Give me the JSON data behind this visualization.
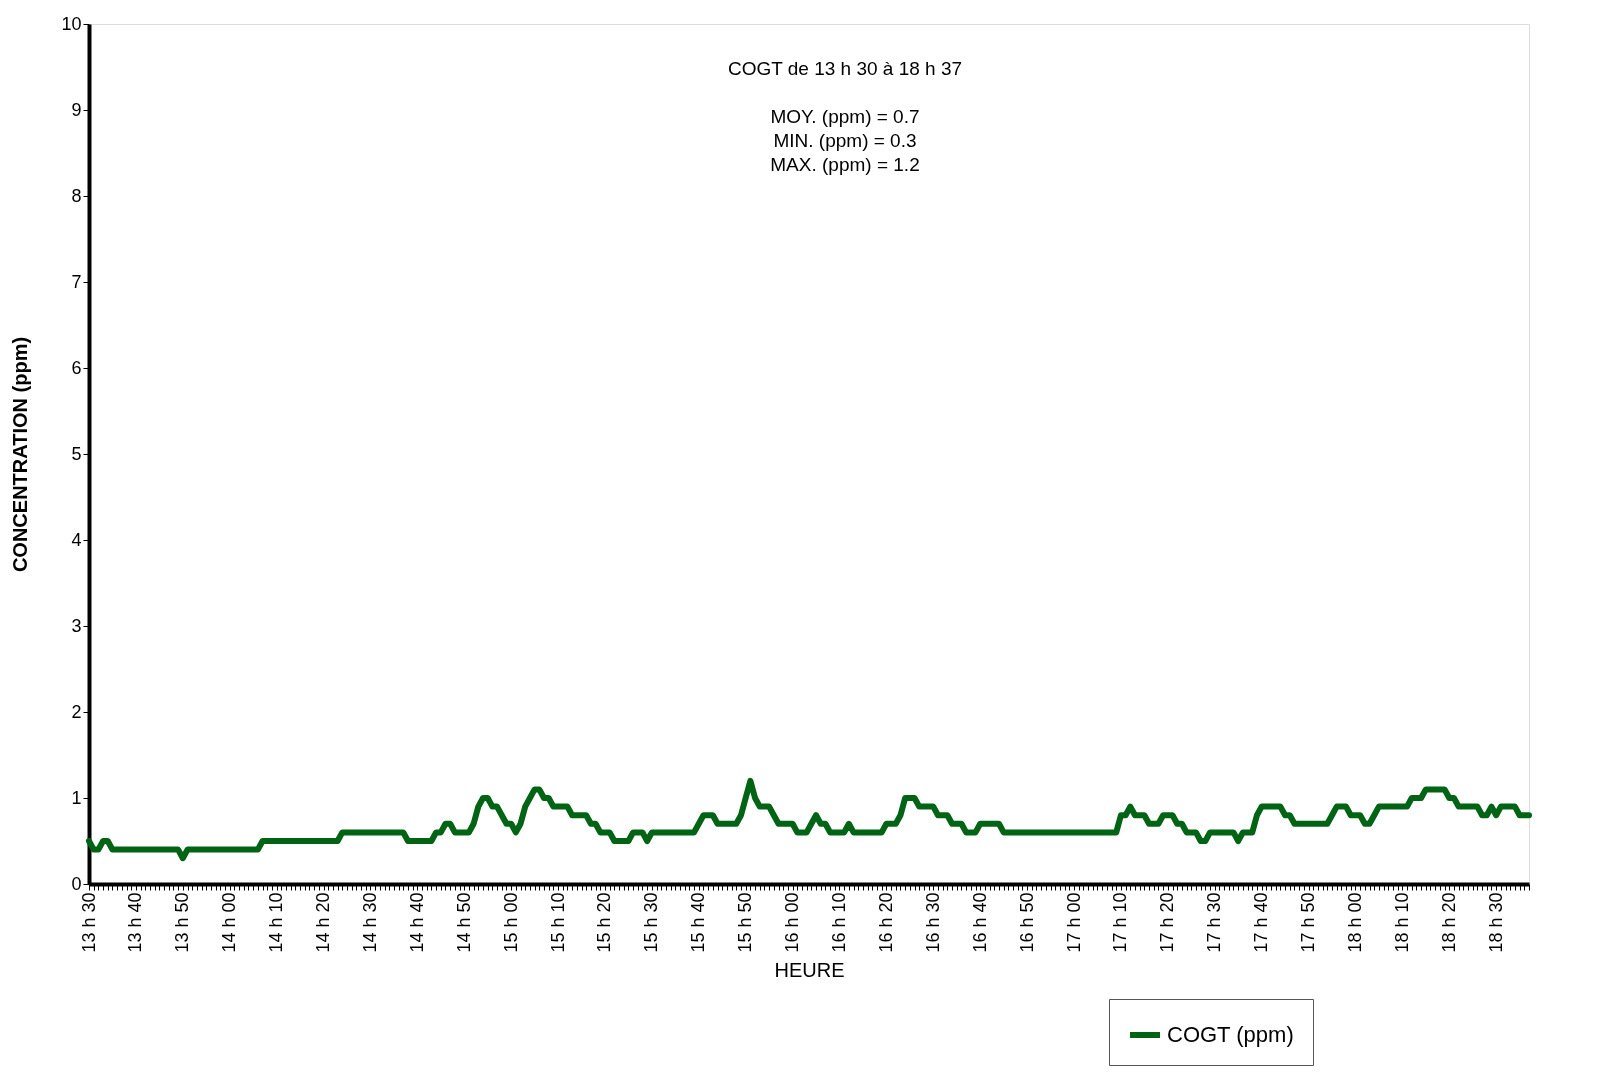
{
  "chart_data": {
    "type": "line",
    "xlabel": "HEURE",
    "ylabel": "CONCENTRATION (ppm)",
    "annotations": [
      "COGT de 13 h 30 à 18 h 37",
      "MOY. (ppm) = 0.7",
      "MIN. (ppm) = 0.3",
      "MAX. (ppm) = 1.2"
    ],
    "categories": [
      "13 h 30",
      null,
      null,
      null,
      null,
      null,
      null,
      null,
      null,
      null,
      "13 h 40",
      null,
      null,
      null,
      null,
      null,
      null,
      null,
      null,
      null,
      "13 h 50",
      null,
      null,
      null,
      null,
      null,
      null,
      null,
      null,
      null,
      "14 h 00",
      null,
      null,
      null,
      null,
      null,
      null,
      null,
      null,
      null,
      "14 h 10",
      null,
      null,
      null,
      null,
      null,
      null,
      null,
      null,
      null,
      "14 h 20",
      null,
      null,
      null,
      null,
      null,
      null,
      null,
      null,
      null,
      "14 h 30",
      null,
      null,
      null,
      null,
      null,
      null,
      null,
      null,
      null,
      "14 h 40",
      null,
      null,
      null,
      null,
      null,
      null,
      null,
      null,
      null,
      "14 h 50",
      null,
      null,
      null,
      null,
      null,
      null,
      null,
      null,
      null,
      "15 h 00",
      null,
      null,
      null,
      null,
      null,
      null,
      null,
      null,
      null,
      "15 h 10",
      null,
      null,
      null,
      null,
      null,
      null,
      null,
      null,
      null,
      "15 h 20",
      null,
      null,
      null,
      null,
      null,
      null,
      null,
      null,
      null,
      "15 h 30",
      null,
      null,
      null,
      null,
      null,
      null,
      null,
      null,
      null,
      "15 h 40",
      null,
      null,
      null,
      null,
      null,
      null,
      null,
      null,
      null,
      "15 h 50",
      null,
      null,
      null,
      null,
      null,
      null,
      null,
      null,
      null,
      "16 h 00",
      null,
      null,
      null,
      null,
      null,
      null,
      null,
      null,
      null,
      "16 h 10",
      null,
      null,
      null,
      null,
      null,
      null,
      null,
      null,
      null,
      "16 h 20",
      null,
      null,
      null,
      null,
      null,
      null,
      null,
      null,
      null,
      "16 h 30",
      null,
      null,
      null,
      null,
      null,
      null,
      null,
      null,
      null,
      "16 h 40",
      null,
      null,
      null,
      null,
      null,
      null,
      null,
      null,
      null,
      "16 h 50",
      null,
      null,
      null,
      null,
      null,
      null,
      null,
      null,
      null,
      "17 h 00",
      null,
      null,
      null,
      null,
      null,
      null,
      null,
      null,
      null,
      "17 h 10",
      null,
      null,
      null,
      null,
      null,
      null,
      null,
      null,
      null,
      "17 h 20",
      null,
      null,
      null,
      null,
      null,
      null,
      null,
      null,
      null,
      "17 h 30",
      null,
      null,
      null,
      null,
      null,
      null,
      null,
      null,
      null,
      "17 h 40",
      null,
      null,
      null,
      null,
      null,
      null,
      null,
      null,
      null,
      "17 h 50",
      null,
      null,
      null,
      null,
      null,
      null,
      null,
      null,
      null,
      "18 h 00",
      null,
      null,
      null,
      null,
      null,
      null,
      null,
      null,
      null,
      "18 h 10",
      null,
      null,
      null,
      null,
      null,
      null,
      null,
      null,
      null,
      "18 h 20",
      null,
      null,
      null,
      null,
      null,
      null,
      null,
      null,
      null,
      "18 h 30",
      null,
      null,
      null,
      null,
      null,
      null,
      null
    ],
    "series": [
      {
        "name": "COGT (ppm)",
        "color": "#006414",
        "values": [
          0.5,
          0.4,
          0.4,
          0.5,
          0.5,
          0.4,
          0.4,
          0.4,
          0.4,
          0.4,
          0.4,
          0.4,
          0.4,
          0.4,
          0.4,
          0.4,
          0.4,
          0.4,
          0.4,
          0.4,
          0.3,
          0.4,
          0.4,
          0.4,
          0.4,
          0.4,
          0.4,
          0.4,
          0.4,
          0.4,
          0.4,
          0.4,
          0.4,
          0.4,
          0.4,
          0.4,
          0.4,
          0.5,
          0.5,
          0.5,
          0.5,
          0.5,
          0.5,
          0.5,
          0.5,
          0.5,
          0.5,
          0.5,
          0.5,
          0.5,
          0.5,
          0.5,
          0.5,
          0.5,
          0.6,
          0.6,
          0.6,
          0.6,
          0.6,
          0.6,
          0.6,
          0.6,
          0.6,
          0.6,
          0.6,
          0.6,
          0.6,
          0.6,
          0.5,
          0.5,
          0.5,
          0.5,
          0.5,
          0.5,
          0.6,
          0.6,
          0.7,
          0.7,
          0.6,
          0.6,
          0.6,
          0.6,
          0.7,
          0.9,
          1.0,
          1.0,
          0.9,
          0.9,
          0.8,
          0.7,
          0.7,
          0.6,
          0.7,
          0.9,
          1.0,
          1.1,
          1.1,
          1.0,
          1.0,
          0.9,
          0.9,
          0.9,
          0.9,
          0.8,
          0.8,
          0.8,
          0.8,
          0.7,
          0.7,
          0.6,
          0.6,
          0.6,
          0.5,
          0.5,
          0.5,
          0.5,
          0.6,
          0.6,
          0.6,
          0.5,
          0.6,
          0.6,
          0.6,
          0.6,
          0.6,
          0.6,
          0.6,
          0.6,
          0.6,
          0.6,
          0.7,
          0.8,
          0.8,
          0.8,
          0.7,
          0.7,
          0.7,
          0.7,
          0.7,
          0.8,
          1.0,
          1.2,
          1.0,
          0.9,
          0.9,
          0.9,
          0.8,
          0.7,
          0.7,
          0.7,
          0.7,
          0.6,
          0.6,
          0.6,
          0.7,
          0.8,
          0.7,
          0.7,
          0.6,
          0.6,
          0.6,
          0.6,
          0.7,
          0.6,
          0.6,
          0.6,
          0.6,
          0.6,
          0.6,
          0.6,
          0.7,
          0.7,
          0.7,
          0.8,
          1.0,
          1.0,
          1.0,
          0.9,
          0.9,
          0.9,
          0.9,
          0.8,
          0.8,
          0.8,
          0.7,
          0.7,
          0.7,
          0.6,
          0.6,
          0.6,
          0.7,
          0.7,
          0.7,
          0.7,
          0.7,
          0.6,
          0.6,
          0.6,
          0.6,
          0.6,
          0.6,
          0.6,
          0.6,
          0.6,
          0.6,
          0.6,
          0.6,
          0.6,
          0.6,
          0.6,
          0.6,
          0.6,
          0.6,
          0.6,
          0.6,
          0.6,
          0.6,
          0.6,
          0.6,
          0.6,
          0.8,
          0.8,
          0.9,
          0.8,
          0.8,
          0.8,
          0.7,
          0.7,
          0.7,
          0.8,
          0.8,
          0.8,
          0.7,
          0.7,
          0.6,
          0.6,
          0.6,
          0.5,
          0.5,
          0.6,
          0.6,
          0.6,
          0.6,
          0.6,
          0.6,
          0.5,
          0.6,
          0.6,
          0.6,
          0.8,
          0.9,
          0.9,
          0.9,
          0.9,
          0.9,
          0.8,
          0.8,
          0.7,
          0.7,
          0.7,
          0.7,
          0.7,
          0.7,
          0.7,
          0.7,
          0.8,
          0.9,
          0.9,
          0.9,
          0.8,
          0.8,
          0.8,
          0.7,
          0.7,
          0.8,
          0.9,
          0.9,
          0.9,
          0.9,
          0.9,
          0.9,
          0.9,
          1.0,
          1.0,
          1.0,
          1.1,
          1.1,
          1.1,
          1.1,
          1.1,
          1.0,
          1.0,
          0.9,
          0.9,
          0.9,
          0.9,
          0.9,
          0.8,
          0.8,
          0.9,
          0.8,
          0.9,
          0.9,
          0.9,
          0.9,
          0.8,
          0.8,
          0.8
        ]
      }
    ],
    "ylim": [
      0,
      10
    ],
    "yticks": [
      0,
      1,
      2,
      3,
      4,
      5,
      6,
      7,
      8,
      9,
      10
    ],
    "grid": false,
    "legend": "bottom right",
    "line_style": "solid",
    "marker": "none"
  }
}
